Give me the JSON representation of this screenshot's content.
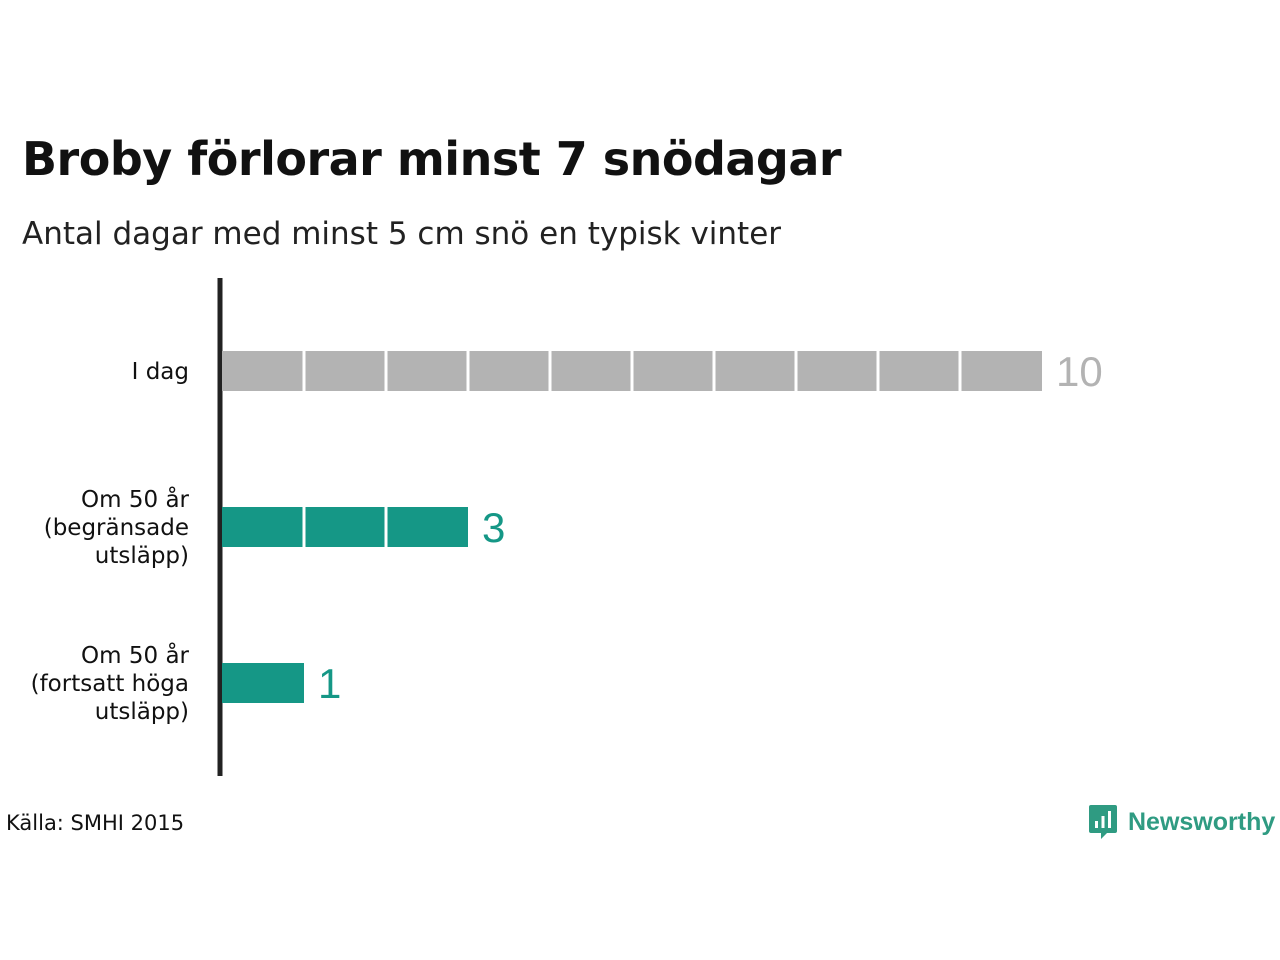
{
  "header": {
    "title": "Broby förlorar minst 7 snödagar",
    "subtitle": "Antal dagar med minst 5 cm snö en typisk vinter"
  },
  "chart_data": {
    "type": "bar",
    "orientation": "horizontal",
    "title": "Broby förlorar minst 7 snödagar",
    "subtitle": "Antal dagar med minst 5 cm snö en typisk vinter",
    "categories": [
      [
        "I dag"
      ],
      [
        "Om 50 år",
        "(begränsade",
        "utsläpp)"
      ],
      [
        "Om 50 år",
        "(fortsatt höga",
        "utsläpp)"
      ]
    ],
    "values": [
      10,
      3,
      1
    ],
    "bar_colors": [
      "#b3b3b3",
      "#159786",
      "#159786"
    ],
    "label_colors": [
      "#b3b3b3",
      "#159786",
      "#159786"
    ],
    "segmented_units": true,
    "xlim": [
      0,
      10
    ],
    "xlabel": "",
    "ylabel": "",
    "grid": false,
    "legend": "none"
  },
  "footer": {
    "source": "Källa: SMHI 2015",
    "brand": "Newsworthy",
    "brand_icon": "newsworthy-logo-icon",
    "brand_color": "#2f9b82"
  }
}
